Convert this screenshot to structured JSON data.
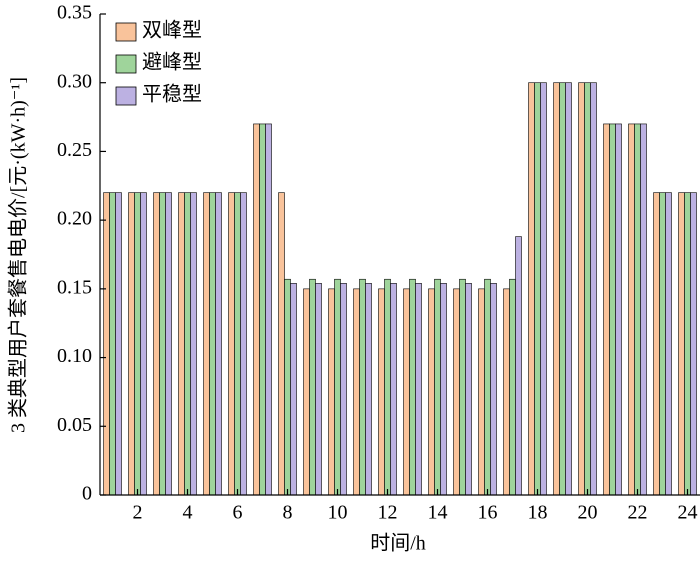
{
  "chart_data": {
    "type": "bar",
    "x_label": "时间/h",
    "y_label": "3 类典型用户套餐售电电价/[元·(kW·h)⁻¹]",
    "x": [
      1,
      2,
      3,
      4,
      5,
      6,
      7,
      8,
      9,
      10,
      11,
      12,
      13,
      14,
      15,
      16,
      17,
      18,
      19,
      20,
      21,
      22,
      23,
      24
    ],
    "xlim": [
      0.5,
      24.5
    ],
    "xticks": [
      2,
      4,
      6,
      8,
      10,
      12,
      14,
      16,
      18,
      20,
      22,
      24
    ],
    "ylim": [
      0,
      0.35
    ],
    "yticks": [
      0,
      0.05,
      {
        "value": 0.1,
        "label": "0.10"
      },
      0.15,
      {
        "value": 0.2,
        "label": "0.20"
      },
      0.25,
      {
        "value": 0.3,
        "label": "0.30"
      },
      0.35
    ],
    "legend": "upper left",
    "series": [
      {
        "name": "双峰型",
        "color": "#f9c39b",
        "values": [
          0.22,
          0.22,
          0.22,
          0.22,
          0.22,
          0.22,
          0.27,
          0.22,
          0.15,
          0.15,
          0.15,
          0.15,
          0.15,
          0.15,
          0.15,
          0.15,
          0.15,
          0.3,
          0.3,
          0.3,
          0.27,
          0.27,
          0.22,
          0.22
        ]
      },
      {
        "name": "避峰型",
        "color": "#9fd49b",
        "values": [
          0.22,
          0.22,
          0.22,
          0.22,
          0.22,
          0.22,
          0.27,
          0.157,
          0.157,
          0.157,
          0.157,
          0.157,
          0.157,
          0.157,
          0.157,
          0.157,
          0.157,
          0.3,
          0.3,
          0.3,
          0.27,
          0.27,
          0.22,
          0.22
        ]
      },
      {
        "name": "平稳型",
        "color": "#bcb1e2",
        "values": [
          0.22,
          0.22,
          0.22,
          0.22,
          0.22,
          0.22,
          0.27,
          0.154,
          0.154,
          0.154,
          0.154,
          0.154,
          0.154,
          0.154,
          0.154,
          0.154,
          0.188,
          0.3,
          0.3,
          0.3,
          0.27,
          0.27,
          0.22,
          0.22
        ]
      }
    ]
  }
}
